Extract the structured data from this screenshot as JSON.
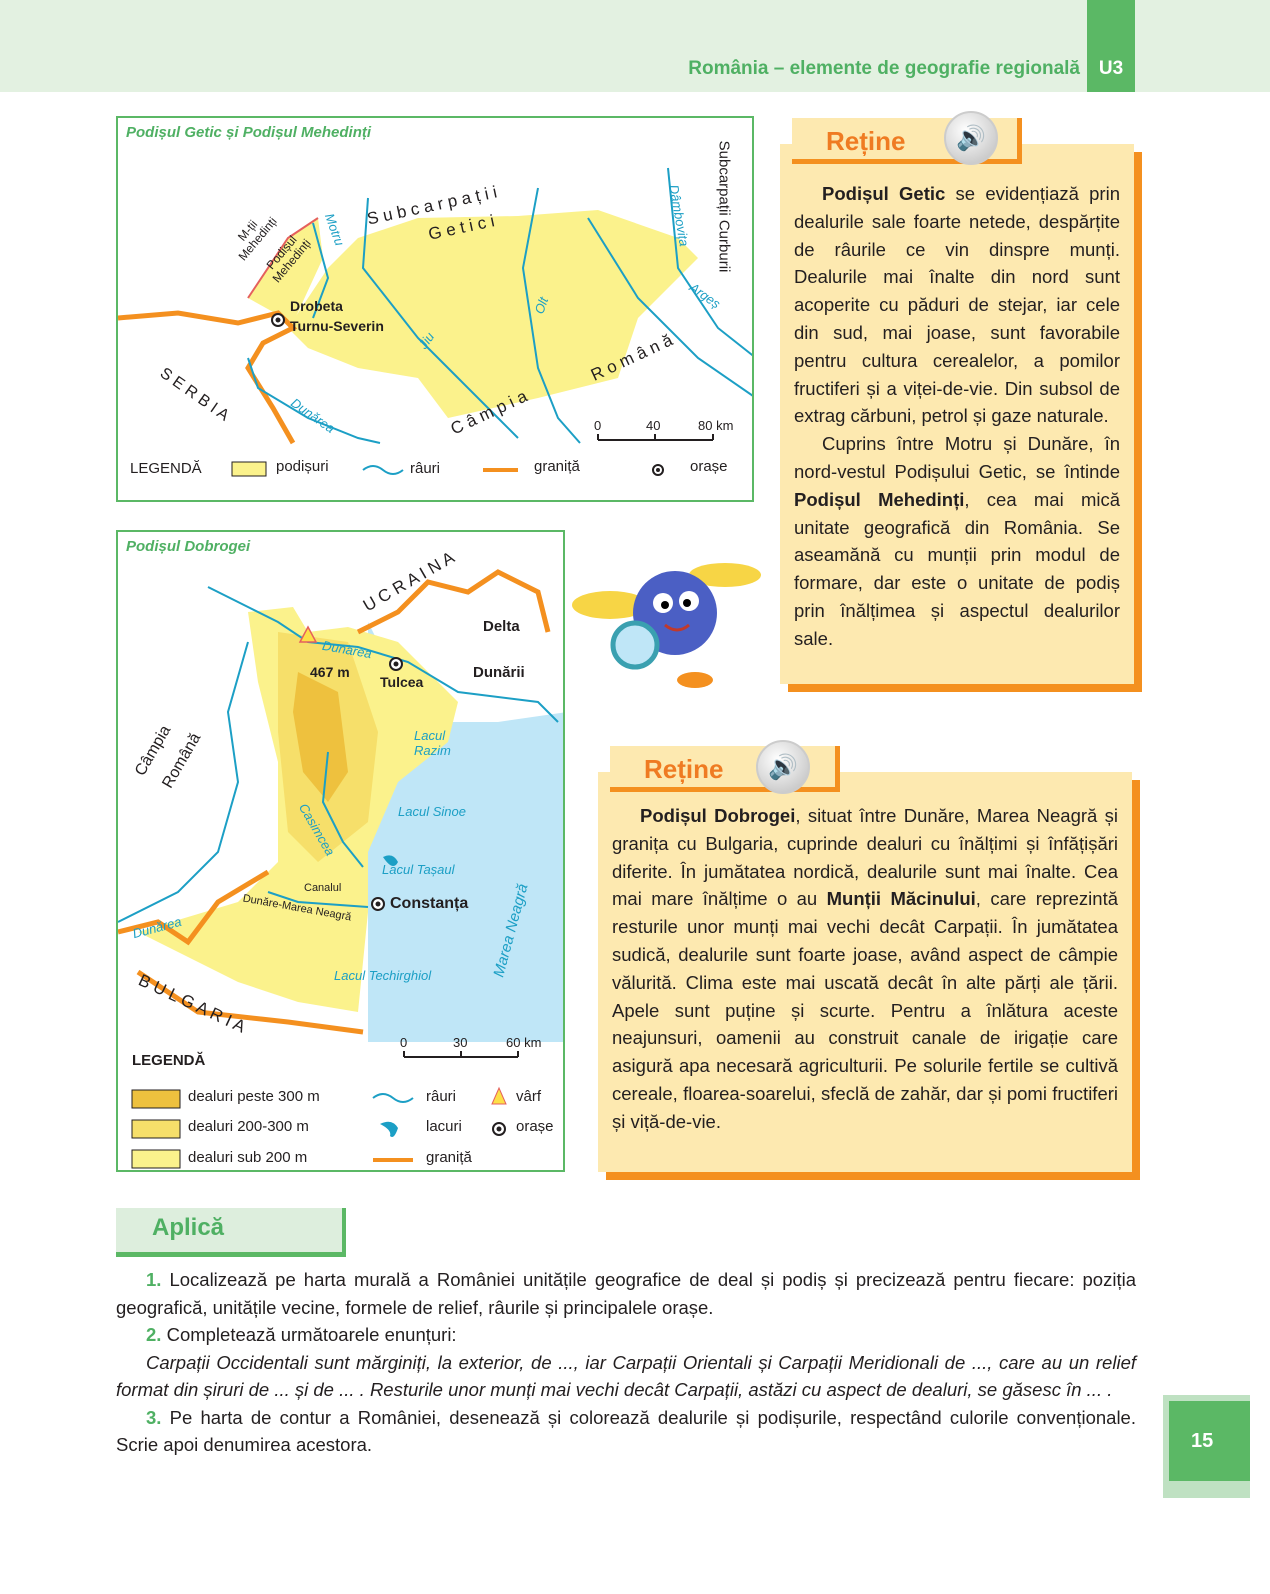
{
  "header": {
    "running_title": "România – elemente de geografie regională",
    "unit": "U3"
  },
  "map_getic": {
    "title": "Podișul Getic și Podișul Mehedinți",
    "labels": {
      "subcarpatii_getici_1": "S u b c a r p a ț i i",
      "subcarpatii_getici_2": "G e t i c i",
      "subcarpatii_curburii": "Subcarpații Curburii",
      "dambovita": "Dâmbovița",
      "motru": "Motru",
      "mtii_mehedinti": "M-ții Mehedinți",
      "podisul_mehedinti": "Podișul Mehedinți",
      "drobeta": "Drobeta",
      "turnu_severin": "Turnu-Severin",
      "jiu": "Jiu",
      "olt": "Olt",
      "arges": "Argeș",
      "serbia": "S E R B I A",
      "dunarea": "Dunărea",
      "campia": "C â m p i a",
      "romana": "R o m â n ă"
    },
    "scale": [
      "0",
      "40",
      "80 km"
    ],
    "legend": {
      "title": "LEGENDĂ",
      "items": [
        "podișuri",
        "râuri",
        "graniță",
        "orașe"
      ]
    }
  },
  "map_dobrogea": {
    "title": "Podișul Dobrogei",
    "labels": {
      "ucraina": "U C R A I N A",
      "delta": "Delta",
      "dunarii": "Dunării",
      "dunarea_n": "Dunărea",
      "peak": "467 m",
      "tulcea": "Tulcea",
      "razim": "Lacul Razim",
      "sinoe": "Lacul Sinoe",
      "casimcea": "Casimcea",
      "tasaul": "Lacul Tașaul",
      "canalul": "Canalul",
      "canal_name": "Dunăre-Marea Neagră",
      "constanta": "Constanța",
      "techirghiol": "Lacul Techirghiol",
      "marea": "Marea Neagră",
      "campia": "Câmpia",
      "romana": "Română",
      "dunarea_w": "Dunărea",
      "bulgaria": "B U L G A R I A"
    },
    "scale": [
      "0",
      "30",
      "60 km"
    ],
    "legend": {
      "title": "LEGENDĂ",
      "items": [
        "dealuri peste 300 m",
        "dealuri 200-300 m",
        "dealuri sub 200 m",
        "râuri",
        "lacuri",
        "graniță",
        "vârf",
        "orașe"
      ]
    }
  },
  "retine1": {
    "title": "Reține",
    "p1_bold": "Podișul Getic",
    "p1": " se evidențiază prin dealurile sale foarte netede, despărțite de râurile ce vin dinspre munți. Dealurile mai înalte din nord sunt acoperite cu păduri de stejar, iar cele din sud, mai joase, sunt favorabile pentru cultura cerealelor, a pomilor fructiferi și a viței-de-vie. Din subsol de extrag cărbuni, petrol și gaze naturale.",
    "p2a": "Cuprins între Motru și Dunăre, în nord-vestul Podișului Getic, se întinde ",
    "p2_bold": "Podișul Mehedinți",
    "p2b": ", cea mai mică unitate geografică din România. Se aseamănă cu munții prin modul de formare, dar este o unitate de podiș prin înălțimea și aspectul dealurilor sale."
  },
  "retine2": {
    "title": "Reține",
    "p1_bold": "Podișul Dobrogei",
    "p1a": ", situat între Dunăre, Marea Neagră și granița cu Bulgaria, cuprinde dealuri cu înălțimi și înfățișări diferite. În jumătatea nordică, dealurile sunt mai înalte. Cea mai mare înălțime o au ",
    "p1_bold2": "Munții Măcinului",
    "p1b": ", care reprezintă resturile unor munți mai vechi decât Carpații. În jumătatea sudică, dealurile sunt foarte joase, având aspect de câmpie vălurită. Clima este mai uscată decât în alte părți ale țării. Apele sunt puține și scurte. Pentru a înlătura aceste neajunsuri, oamenii au construit canale de irigație care asigură apa necesară agriculturii. Pe solurile fertile se cultivă cereale, floarea-soarelui, sfeclă de zahăr, dar și pomi fructiferi și viță-de-vie."
  },
  "aplica": {
    "title": "Aplică",
    "tasks": [
      {
        "num": "1.",
        "text": " Localizează pe harta murală a României unitățile geografice de deal și podiș și precizează pentru fiecare: poziția geografică, unitățile vecine, formele de relief, râurile și principalele orașe."
      },
      {
        "num": "2.",
        "text": " Completează următoarele enunțuri:",
        "italic": "Carpații Occidentali sunt mărginiți, la exterior, de ..., iar Carpații Orientali și Carpații Meridionali de ..., care au un relief format din șiruri de ... și de ... . Resturile unor munți mai vechi decât Carpații, astăzi cu aspect de dealuri, se găsesc în ... ."
      },
      {
        "num": "3.",
        "text": " Pe harta de contur a României, desenează și colorează dealurile și podișurile, respectând culorile convenționale. Scrie apoi denumirea acestora."
      }
    ]
  },
  "page_number": "15",
  "colors": {
    "green": "#5bb865",
    "orange": "#f4901f",
    "box": "#fde9b0",
    "plateau": "#fbf28c",
    "river": "#1c9fc5",
    "sea": "#bfe6f7"
  }
}
